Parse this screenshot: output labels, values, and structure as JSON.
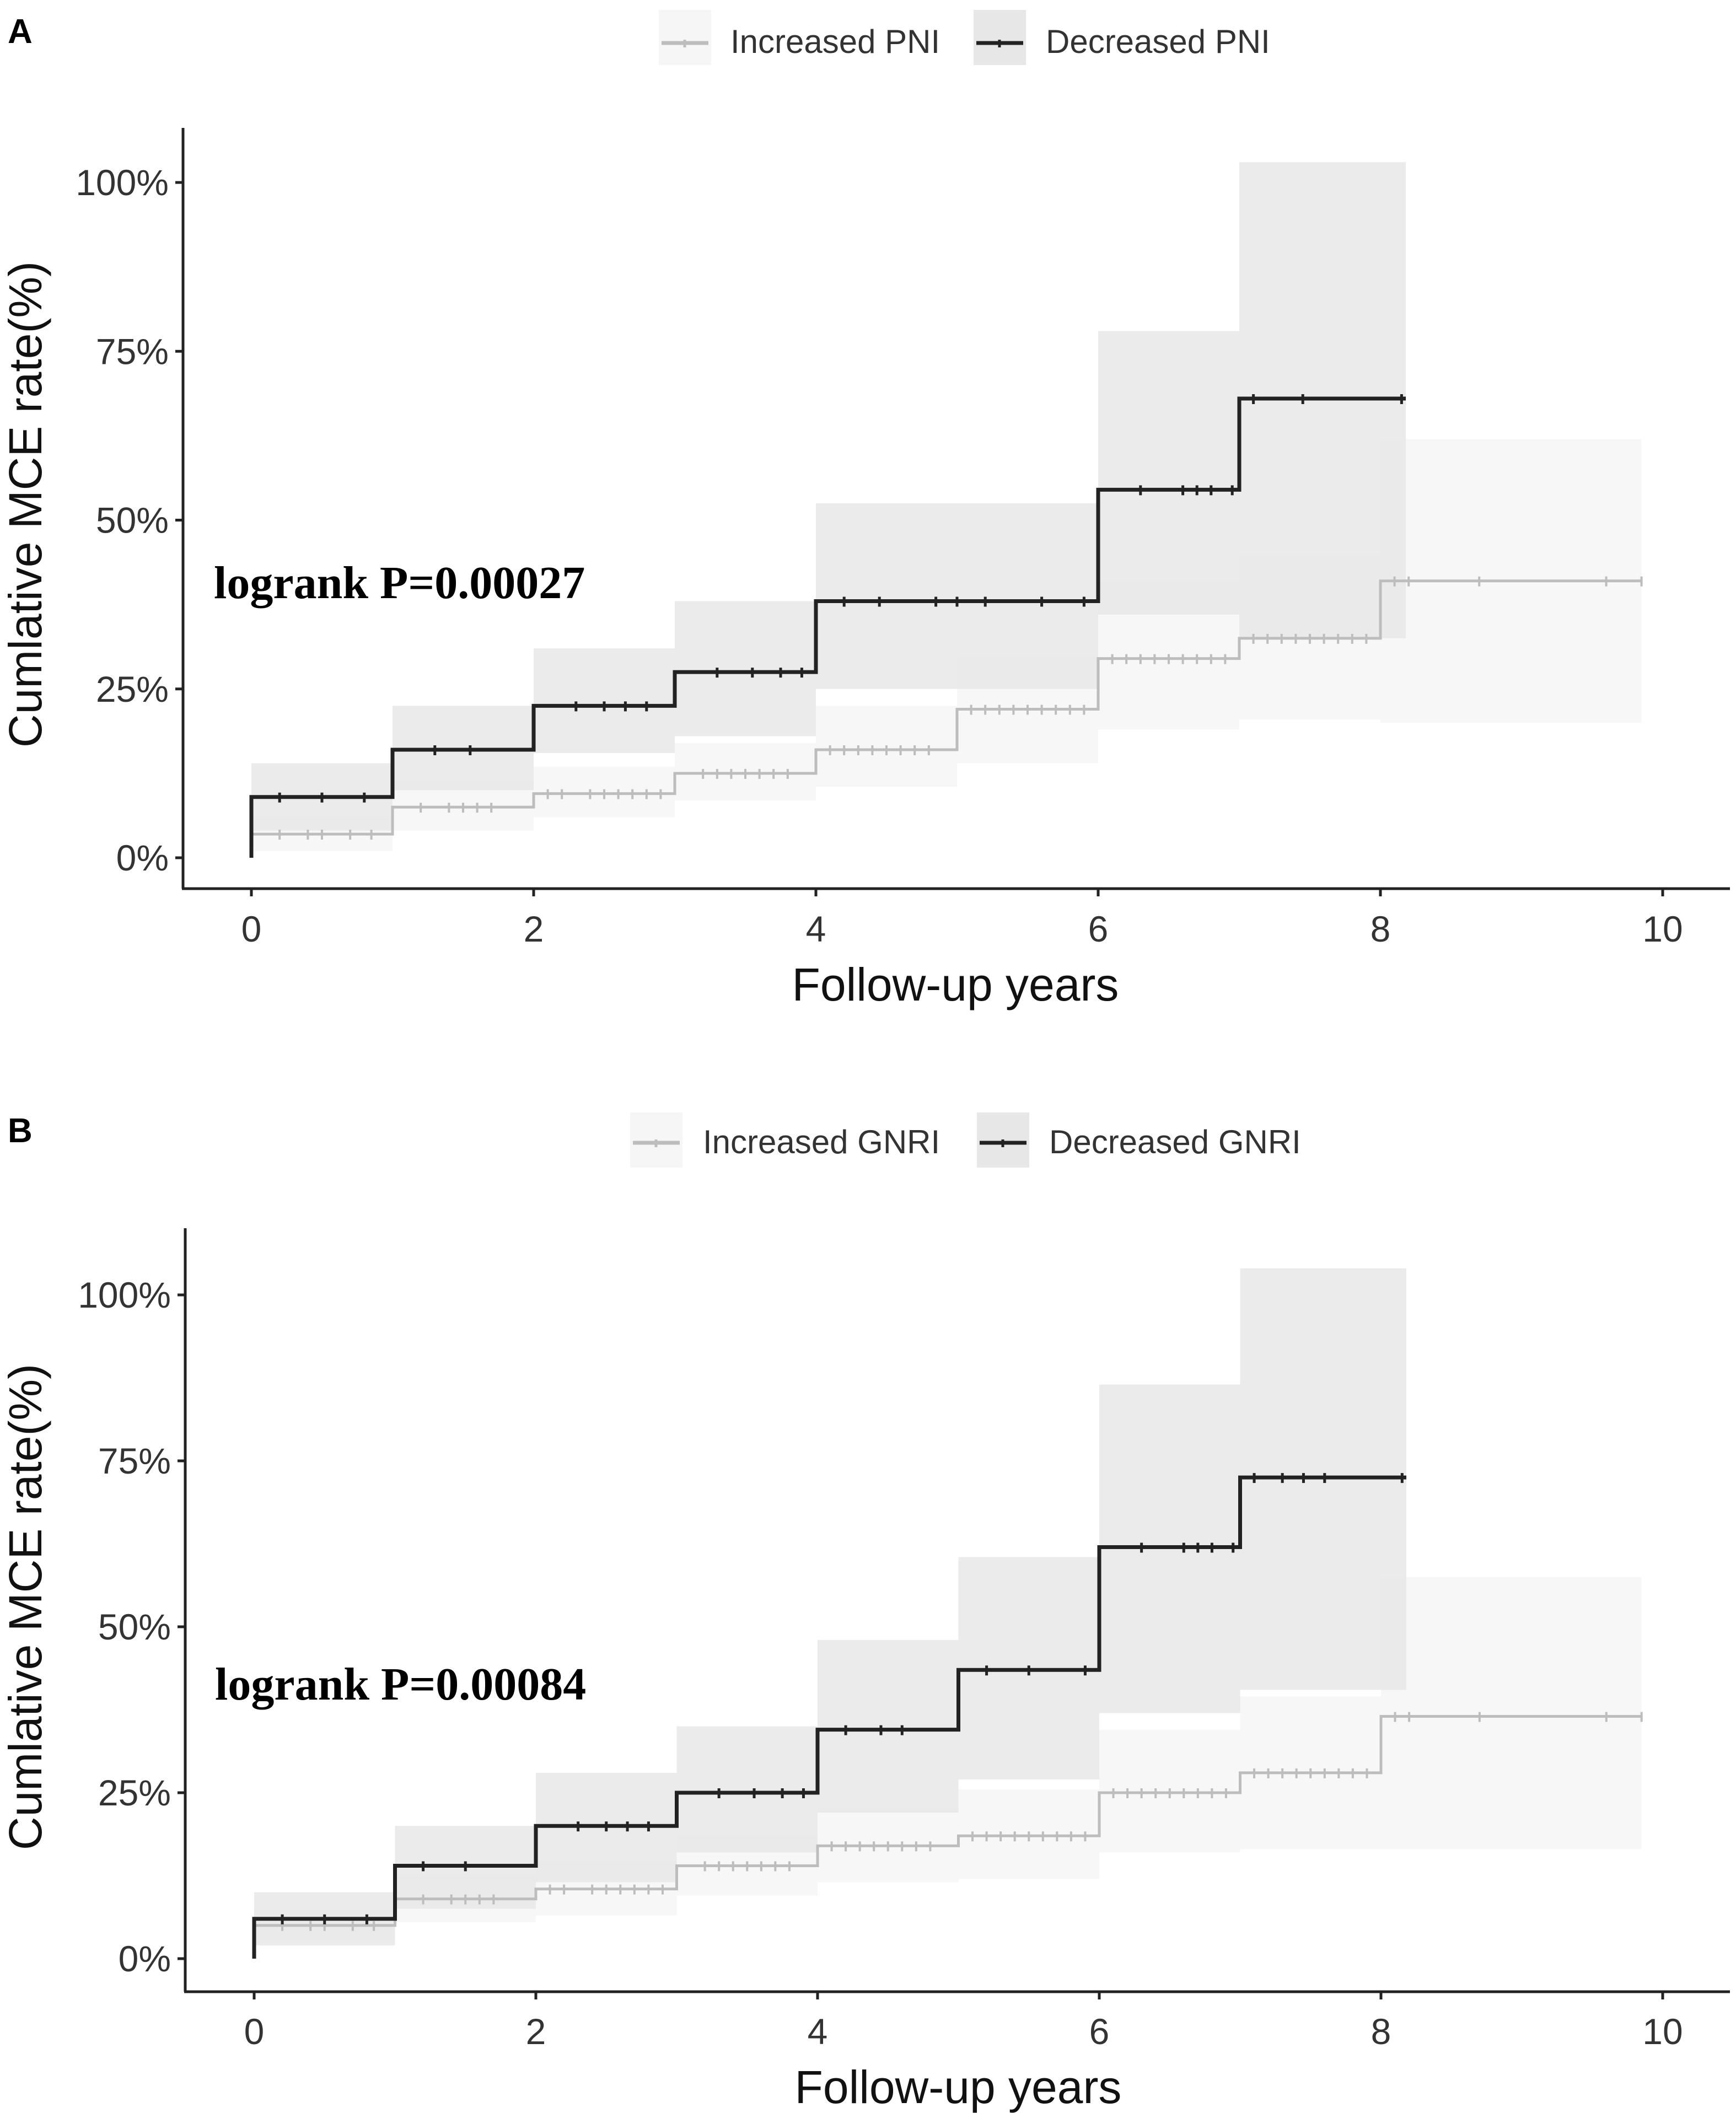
{
  "chart_data": [
    {
      "type": "line",
      "panel_label": "A",
      "annotation": "logrank P=0.00027",
      "xlabel": "Follow-up years",
      "ylabel": "Cumlative MCE rate(%)",
      "xlim": [
        -0.2,
        10.5
      ],
      "ylim": [
        -0.045,
        1.08
      ],
      "xticks": [
        0,
        2,
        4,
        6,
        8,
        10
      ],
      "xtick_labels": [
        "0",
        "2",
        "4",
        "6",
        "8",
        "10"
      ],
      "yticks": [
        0,
        0.25,
        0.5,
        0.75,
        1.0
      ],
      "ytick_labels": [
        "0%",
        "25%",
        "50%",
        "75%",
        "100%"
      ],
      "legend_position": "top",
      "series": [
        {
          "name": "Increased PNI",
          "color": "#bdbdbd",
          "band_color": "#f6f6f6",
          "line_width": 5,
          "step_x": [
            0,
            1,
            2,
            3,
            4,
            5,
            6,
            7,
            8,
            9.85
          ],
          "step_y": [
            0.035,
            0.075,
            0.095,
            0.125,
            0.16,
            0.22,
            0.295,
            0.325,
            0.41,
            0.41
          ],
          "ci_x": [
            0,
            1,
            2,
            3,
            4,
            5,
            6,
            7,
            8,
            9.85
          ],
          "ci_lower": [
            0.01,
            0.04,
            0.06,
            0.085,
            0.105,
            0.14,
            0.19,
            0.205,
            0.2,
            0.2
          ],
          "ci_upper": [
            0.06,
            0.115,
            0.135,
            0.17,
            0.225,
            0.3,
            0.41,
            0.45,
            0.62,
            0.62
          ],
          "censor_x": [
            0.2,
            0.4,
            0.5,
            0.7,
            0.85,
            1.2,
            1.4,
            1.5,
            1.6,
            1.7,
            2.1,
            2.2,
            2.4,
            2.5,
            2.6,
            2.7,
            2.8,
            2.9,
            3.2,
            3.3,
            3.4,
            3.5,
            3.6,
            3.7,
            3.8,
            4.1,
            4.2,
            4.3,
            4.4,
            4.5,
            4.6,
            4.7,
            4.8,
            5.1,
            5.2,
            5.3,
            5.4,
            5.5,
            5.6,
            5.7,
            5.8,
            5.9,
            6.1,
            6.2,
            6.3,
            6.4,
            6.5,
            6.6,
            6.7,
            6.8,
            6.9,
            7.1,
            7.2,
            7.3,
            7.4,
            7.5,
            7.6,
            7.7,
            7.8,
            7.9,
            8.1,
            8.2,
            8.7,
            9.6,
            9.85
          ]
        },
        {
          "name": "Decreased PNI",
          "color": "#222222",
          "band_color": "#e7e7e7",
          "line_width": 7,
          "step_x": [
            0,
            1,
            2,
            3,
            4,
            6,
            7,
            8.18
          ],
          "step_y": [
            0.09,
            0.16,
            0.225,
            0.275,
            0.38,
            0.545,
            0.68,
            0.68
          ],
          "ci_x": [
            0,
            1,
            2,
            3,
            4,
            6,
            7,
            8.18
          ],
          "ci_lower": [
            0.04,
            0.1,
            0.155,
            0.18,
            0.25,
            0.36,
            0.325,
            0.325
          ],
          "ci_upper": [
            0.14,
            0.225,
            0.31,
            0.38,
            0.525,
            0.78,
            1.03,
            1.03
          ],
          "censor_x": [
            0.2,
            0.5,
            0.8,
            1.3,
            1.55,
            2.3,
            2.5,
            2.65,
            2.8,
            3.3,
            3.55,
            3.75,
            3.9,
            4.2,
            4.45,
            4.85,
            5.0,
            5.2,
            5.6,
            5.9,
            6.3,
            6.6,
            6.7,
            6.8,
            6.95,
            7.1,
            7.45,
            8.15
          ]
        }
      ]
    },
    {
      "type": "line",
      "panel_label": "B",
      "annotation": "logrank P=0.00084",
      "xlabel": "Follow-up years",
      "ylabel": "Cumlative MCE rate(%)",
      "xlim": [
        -0.2,
        10.5
      ],
      "ylim": [
        -0.045,
        1.08
      ],
      "xticks": [
        0,
        2,
        4,
        6,
        8,
        10
      ],
      "xtick_labels": [
        "0",
        "2",
        "4",
        "6",
        "8",
        "10"
      ],
      "yticks": [
        0,
        0.25,
        0.5,
        0.75,
        1.0
      ],
      "ytick_labels": [
        "0%",
        "25%",
        "50%",
        "75%",
        "100%"
      ],
      "legend_position": "top",
      "series": [
        {
          "name": "Increased GNRI",
          "color": "#bdbdbd",
          "band_color": "#f6f6f6",
          "line_width": 5,
          "step_x": [
            0,
            1,
            2,
            3,
            4,
            5,
            6,
            7,
            8,
            9.85
          ],
          "step_y": [
            0.05,
            0.09,
            0.105,
            0.14,
            0.17,
            0.185,
            0.25,
            0.28,
            0.365,
            0.365
          ],
          "ci_x": [
            0,
            1,
            2,
            3,
            4,
            5,
            6,
            7,
            8,
            9.85
          ],
          "ci_lower": [
            0.025,
            0.055,
            0.065,
            0.095,
            0.115,
            0.12,
            0.16,
            0.165,
            0.165,
            0.165
          ],
          "ci_upper": [
            0.075,
            0.125,
            0.145,
            0.185,
            0.225,
            0.255,
            0.345,
            0.395,
            0.575,
            0.575
          ],
          "censor_x": [
            0.2,
            0.4,
            0.5,
            0.7,
            0.85,
            1.2,
            1.4,
            1.5,
            1.6,
            1.7,
            2.1,
            2.2,
            2.4,
            2.5,
            2.6,
            2.7,
            2.8,
            2.9,
            3.2,
            3.3,
            3.4,
            3.5,
            3.6,
            3.7,
            3.8,
            4.1,
            4.2,
            4.3,
            4.4,
            4.5,
            4.6,
            4.7,
            4.8,
            5.1,
            5.2,
            5.3,
            5.4,
            5.5,
            5.6,
            5.7,
            5.8,
            5.9,
            6.1,
            6.2,
            6.3,
            6.4,
            6.5,
            6.6,
            6.7,
            6.8,
            6.9,
            7.1,
            7.2,
            7.3,
            7.4,
            7.5,
            7.6,
            7.7,
            7.8,
            7.9,
            8.1,
            8.2,
            8.7,
            9.6,
            9.85
          ]
        },
        {
          "name": "Decreased GNRI",
          "color": "#222222",
          "band_color": "#e7e7e7",
          "line_width": 7,
          "step_x": [
            0,
            1,
            2,
            3,
            4,
            5,
            6,
            7,
            8.18
          ],
          "step_y": [
            0.06,
            0.14,
            0.2,
            0.25,
            0.345,
            0.435,
            0.62,
            0.725,
            0.725
          ],
          "ci_x": [
            0,
            1,
            2,
            3,
            4,
            5,
            6,
            7,
            8.18
          ],
          "ci_lower": [
            0.02,
            0.075,
            0.115,
            0.16,
            0.22,
            0.27,
            0.37,
            0.405,
            0.405
          ],
          "ci_upper": [
            0.1,
            0.2,
            0.28,
            0.35,
            0.48,
            0.605,
            0.865,
            1.04,
            1.04
          ],
          "censor_x": [
            0.2,
            0.5,
            0.8,
            1.2,
            1.5,
            2.3,
            2.5,
            2.65,
            2.8,
            3.3,
            3.55,
            3.75,
            3.9,
            4.2,
            4.45,
            4.6,
            5.2,
            5.5,
            5.9,
            6.3,
            6.6,
            6.7,
            6.8,
            6.95,
            7.1,
            7.3,
            7.45,
            7.6,
            8.15
          ]
        }
      ]
    }
  ]
}
